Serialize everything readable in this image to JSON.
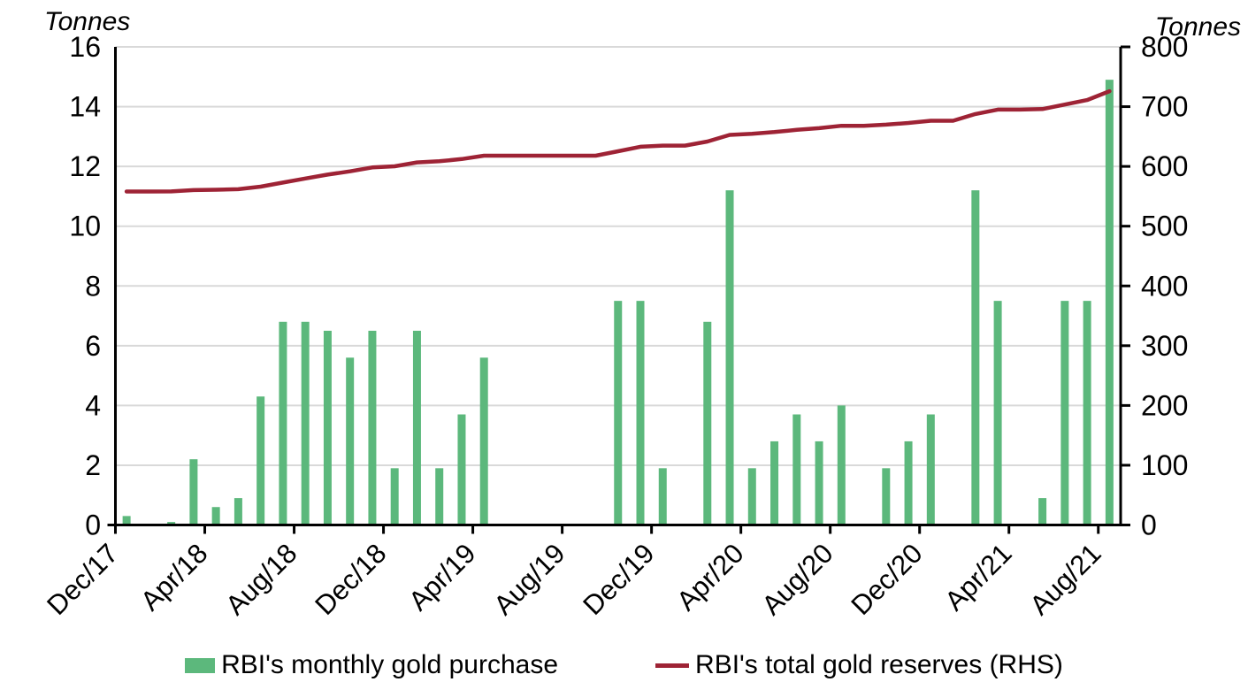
{
  "chart_data": {
    "type": "bar+line combo",
    "background": "#FFFFFF",
    "grid_color": "#D9D9D9",
    "axis_color": "#000000",
    "legend_position": "bottom-center",
    "months": [
      "Dec/17",
      "Jan/18",
      "Feb/18",
      "Mar/18",
      "Apr/18",
      "May/18",
      "Jun/18",
      "Jul/18",
      "Aug/18",
      "Sep/18",
      "Oct/18",
      "Nov/18",
      "Dec/18",
      "Jan/19",
      "Feb/19",
      "Mar/19",
      "Apr/19",
      "May/19",
      "Jun/19",
      "Jul/19",
      "Aug/19",
      "Sep/19",
      "Oct/19",
      "Nov/19",
      "Dec/19",
      "Jan/20",
      "Feb/20",
      "Mar/20",
      "Apr/20",
      "May/20",
      "Jun/20",
      "Jul/20",
      "Aug/20",
      "Sep/20",
      "Oct/20",
      "Nov/20",
      "Dec/20",
      "Jan/21",
      "Feb/21",
      "Mar/21",
      "Apr/21",
      "May/21",
      "Jun/21",
      "Jul/21",
      "Aug/21"
    ],
    "x_tick_labels": [
      "Dec/17",
      "Apr/18",
      "Aug/18",
      "Dec/18",
      "Apr/19",
      "Aug/19",
      "Dec/19",
      "Apr/20",
      "Aug/20",
      "Dec/20",
      "Apr/21",
      "Aug/21"
    ],
    "x_label_every": 4,
    "left_axis": {
      "title": "Tonnes",
      "min": 0,
      "max": 16,
      "tick_step": 2,
      "ticks": [
        0,
        2,
        4,
        6,
        8,
        10,
        12,
        14,
        16
      ]
    },
    "right_axis": {
      "title": "Tonnes",
      "min": 0,
      "max": 800,
      "tick_step": 100,
      "ticks": [
        0,
        100,
        200,
        300,
        400,
        500,
        600,
        700,
        800
      ]
    },
    "series": [
      {
        "name": "RBI's monthly gold purchase",
        "type": "bar",
        "axis": "left",
        "color": "#5CB87C",
        "values": [
          0.3,
          0,
          0.1,
          2.2,
          0.6,
          0.9,
          4.3,
          6.8,
          6.8,
          6.5,
          5.6,
          6.5,
          1.9,
          6.5,
          1.9,
          3.7,
          5.6,
          0,
          0,
          0,
          0,
          0,
          7.5,
          7.5,
          1.9,
          0,
          6.8,
          11.2,
          1.9,
          2.8,
          3.7,
          2.8,
          4,
          0,
          1.9,
          2.8,
          3.7,
          0,
          11.2,
          7.5,
          0,
          0.9,
          7.5,
          7.5,
          14.9
        ]
      },
      {
        "name": "RBI's total gold reserves (RHS)",
        "type": "line",
        "axis": "right",
        "color": "#9E2335",
        "values": [
          558,
          558,
          558.1,
          560.3,
          560.9,
          561.8,
          566.1,
          572.9,
          579.7,
          586.2,
          591.8,
          598.3,
          600.2,
          606.7,
          608.6,
          612.3,
          617.9,
          617.9,
          617.9,
          617.9,
          617.9,
          617.9,
          625.4,
          632.9,
          634.8,
          634.8,
          641.6,
          652.8,
          654.7,
          657.5,
          661.2,
          664,
          668,
          668,
          669.9,
          672.7,
          676.4,
          676.4,
          687.6,
          695.1,
          695.1,
          696,
          703.5,
          711,
          725.9
        ]
      }
    ]
  }
}
